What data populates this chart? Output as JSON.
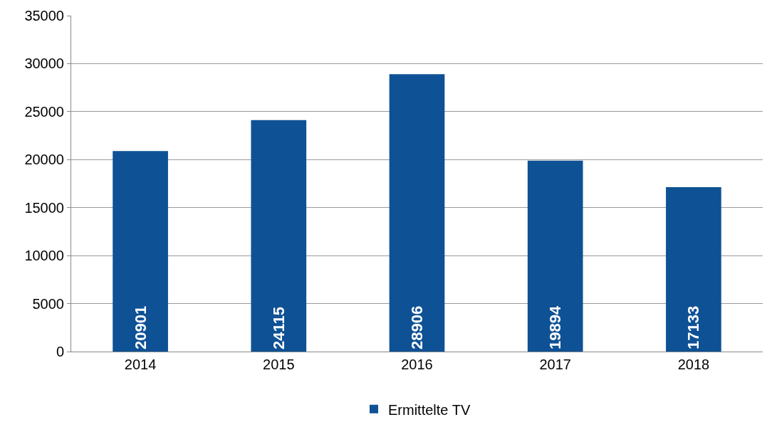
{
  "chart_data": {
    "type": "bar",
    "categories": [
      "2014",
      "2015",
      "2016",
      "2017",
      "2018"
    ],
    "series": [
      {
        "name": "Ermittelte TV",
        "color": "#0e5195",
        "values": [
          20901,
          24115,
          28906,
          19894,
          17133
        ]
      }
    ],
    "ylim": [
      0,
      35000
    ],
    "yticks": [
      0,
      5000,
      10000,
      15000,
      20000,
      25000,
      30000,
      35000
    ],
    "grid": "y",
    "legend": "bottom",
    "data_labels": true
  }
}
